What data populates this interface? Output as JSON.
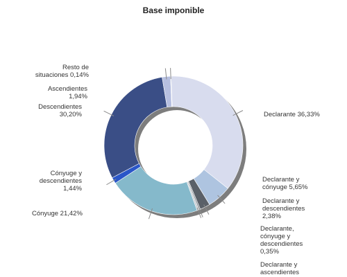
{
  "chart_data": {
    "type": "pie",
    "title": "Base imponible",
    "donut": true,
    "legend": "none",
    "slices": [
      {
        "label_lines": [
          "Declarante 36,33%"
        ],
        "name": "Declarante",
        "value": 36.33,
        "color": "#d8dcee"
      },
      {
        "label_lines": [
          "Declarante y",
          "cónyuge 5,65%"
        ],
        "name": "Declarante y cónyuge",
        "value": 5.65,
        "color": "#aec4e0"
      },
      {
        "label_lines": [
          "Declarante y",
          "descendientes",
          "2,38%"
        ],
        "name": "Declarante y descendientes",
        "value": 2.38,
        "color": "#5a6068"
      },
      {
        "label_lines": [
          "Declarante,",
          "cónyuge y",
          "descendientes",
          "0,35%"
        ],
        "name": "Declarante, cónyuge y descendientes",
        "value": 0.35,
        "color": "#8a8f95"
      },
      {
        "label_lines": [
          "Declarante y",
          "ascendientes"
        ],
        "name": "Declarante y ascendientes",
        "value": 0.45,
        "color": "#c9ced4"
      },
      {
        "label_lines": [
          "Cónyuge 21,42%"
        ],
        "name": "Cónyuge",
        "value": 21.42,
        "color": "#85b9cb"
      },
      {
        "label_lines": [
          "Cónyuge y",
          "descendientes",
          "1,44%"
        ],
        "name": "Cónyuge y descendientes",
        "value": 1.44,
        "color": "#2a56c8"
      },
      {
        "label_lines": [
          "Descendientes",
          "30,20%"
        ],
        "name": "Descendientes",
        "value": 30.2,
        "color": "#3a4e86"
      },
      {
        "label_lines": [
          "Ascendientes",
          "1,94%"
        ],
        "name": "Ascendientes",
        "value": 1.94,
        "color": "#b6bfe0"
      },
      {
        "label_lines": [
          "Resto de",
          "situaciones 0,14%"
        ],
        "name": "Resto de situaciones",
        "value": 0.14,
        "color": "#c0c4d2"
      }
    ]
  }
}
